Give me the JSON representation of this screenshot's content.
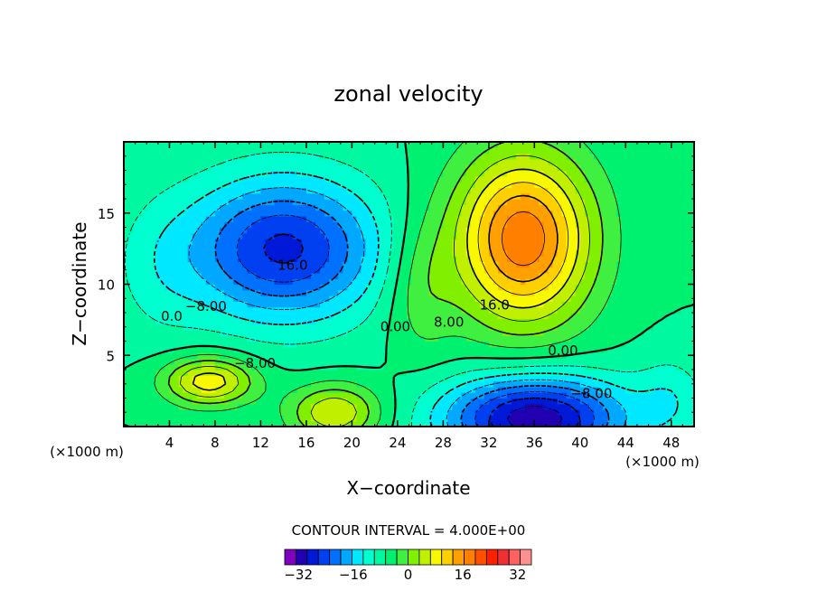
{
  "chart_data": {
    "type": "heatmap",
    "title": "zonal velocity",
    "xlabel": "X−coordinate",
    "ylabel": "Z−coordinate",
    "x_unit_label": "(×1000 m)",
    "y_unit_label": "(×1000 m)",
    "xlim": [
      0,
      50
    ],
    "ylim": [
      0,
      20
    ],
    "x_ticks": [
      4,
      8,
      12,
      16,
      20,
      24,
      28,
      32,
      36,
      40,
      44,
      48
    ],
    "y_ticks": [
      5,
      10,
      15
    ],
    "contour_interval_text": "CONTOUR INTERVAL = 4.000E+00",
    "contour_labels": [
      {
        "text": "16.0",
        "x": 14.8,
        "y": 11.3
      },
      {
        "text": "−8.00",
        "x": 7.2,
        "y": 8.4
      },
      {
        "text": "0.0",
        "x": 4.2,
        "y": 7.7
      },
      {
        "text": "0.00",
        "x": 23.8,
        "y": 7.0
      },
      {
        "text": "−8.00",
        "x": 11.5,
        "y": 4.4
      },
      {
        "text": "16.0",
        "x": 32.5,
        "y": 8.5
      },
      {
        "text": "8.00",
        "x": 28.5,
        "y": 7.3
      },
      {
        "text": "0.00",
        "x": 38.5,
        "y": 5.3
      },
      {
        "text": "−8.00",
        "x": 41.0,
        "y": 2.3
      }
    ],
    "field_features": [
      {
        "name": "upper negative jet",
        "x": 14,
        "z": 12.5,
        "value": -22
      },
      {
        "name": "upper positive jet",
        "x": 35,
        "z": 13,
        "value": 28
      },
      {
        "name": "lower negative jet",
        "x": 36,
        "z": 0.7,
        "value": -28
      },
      {
        "name": "lower positive lobe",
        "x": 7.5,
        "z": 3.2,
        "value": 18
      },
      {
        "name": "lower positive lobe",
        "x": 18.5,
        "z": 0.6,
        "value": 18
      }
    ],
    "colorbar": {
      "min": -36,
      "max": 36,
      "step": 4,
      "tick_labels": [
        "−32",
        "−16",
        "0",
        "16",
        "32"
      ],
      "tick_values": [
        -32,
        -16,
        0,
        16,
        32
      ],
      "colors": [
        "#8000c0",
        "#2000b0",
        "#0018d8",
        "#0040f0",
        "#0070ff",
        "#00a8ff",
        "#00e8ff",
        "#00ffd0",
        "#00f8a0",
        "#00f070",
        "#40f040",
        "#80f000",
        "#c0f000",
        "#f8f800",
        "#ffd000",
        "#ffa000",
        "#ff8000",
        "#ff5000",
        "#ff2000",
        "#f03030",
        "#ff6060",
        "#ff9090"
      ]
    }
  }
}
